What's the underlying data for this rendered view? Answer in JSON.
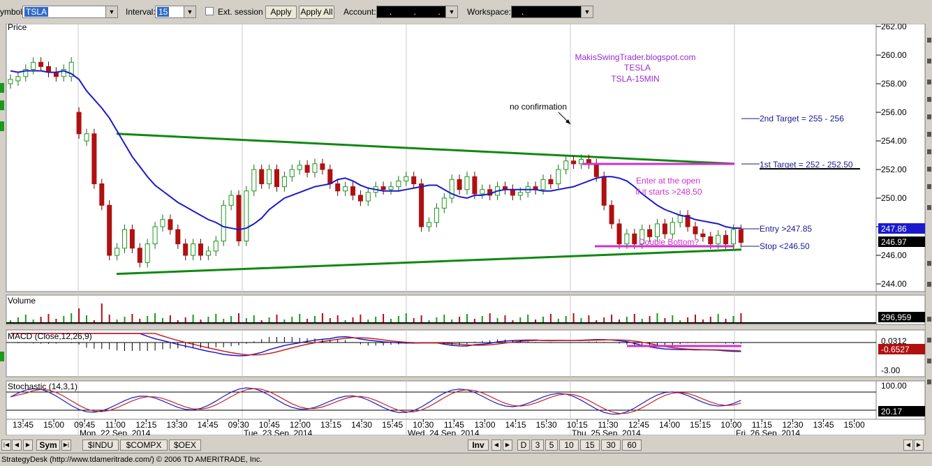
{
  "toolbar": {
    "symbol_label": "ymbol:",
    "symbol_value": "TSLA",
    "interval_label": "Interval:",
    "interval_value": "15",
    "ext_session_label": "Ext. session",
    "apply_label": "Apply",
    "apply_all_label": "Apply All",
    "account_label": "Account:",
    "account_value": ". . . .",
    "workspace_label": "Workspace:",
    "workspace_value": "."
  },
  "panels": {
    "price": "Price",
    "volume": "Volume",
    "macd": "MACD (Close,12,26,9)",
    "stochastic": "Stochastic (14,3,1)"
  },
  "price_axis": [
    "262.00",
    "260.00",
    "258.00",
    "256.00",
    "254.00",
    "252.00",
    "250.00",
    "248.00",
    "246.00",
    "244.00"
  ],
  "price_badges": {
    "blue": "247.86",
    "black": "246.97"
  },
  "volume_badge": "296,959",
  "macd_axis": {
    "top": "0.0312",
    "badge": "-0.6527",
    "bottom": "-3.00"
  },
  "stoch_axis": {
    "top": "100.00",
    "badge": "20.17"
  },
  "time_labels": [
    "13:45",
    "15:00",
    "09:45",
    "11:00",
    "12:15",
    "13:30",
    "14:45",
    "09:30",
    "10:45",
    "12:00",
    "13:15",
    "14:30",
    "15:45",
    "10:30",
    "11:45",
    "13:00",
    "14:15",
    "15:30",
    "10:15",
    "11:30",
    "12:45",
    "14:00",
    "15:15",
    "10:00",
    "11:15",
    "12:30",
    "13:45",
    "15:00"
  ],
  "date_labels": [
    "Mon, 22 Sep, 2014",
    "Tue, 23 Sep, 2014",
    "Wed, 24 Sep, 2014",
    "Thu, 25 Sep, 2014",
    "Fri, 26 Sep, 2014"
  ],
  "annotations": {
    "blog": "MakisSwingTrader.blogspot.com",
    "name": "TESLA",
    "ticker": "TSLA-15MIN",
    "no_confirmation": "no confirmation",
    "target2": "2nd Target = 255 - 256",
    "target1": "1st Target = 252 - 252.50",
    "enter1": "Enter at the open",
    "enter2": "if it starts >248.50",
    "entry": "Entry >247.85",
    "stop": "Stop <246.50",
    "double_bottom": "Double Bottom?"
  },
  "tabs": {
    "sym": "Sym",
    "sheets": [
      "$INDU",
      "$COMPX",
      "$OEX"
    ],
    "inv": "Inv",
    "periods": [
      "D",
      "3",
      "5",
      "10",
      "15",
      "30",
      "60"
    ]
  },
  "status_text": "StrategyDesk (http://www.tdameritrade.com/) © 2006 TD AMERITRADE, Inc.",
  "colors": {
    "up": "#1a9a1a",
    "down": "#b01010",
    "ma": "#1a1acc",
    "channel": "#118811",
    "annotation": "#cc33cc",
    "label": "#1a1a8c"
  },
  "chart_data": {
    "type": "candlestick",
    "symbol": "TSLA",
    "interval": "15",
    "ylim": [
      243.5,
      262.5
    ],
    "channel_upper": [
      [
        0.135,
        254.5
      ],
      [
        0.95,
        252.4
      ]
    ],
    "channel_lower": [
      [
        0.135,
        244.7
      ],
      [
        0.95,
        246.4
      ]
    ],
    "ma_series": [
      258.9,
      258.8,
      258.9,
      258.9,
      258.9,
      258.8,
      258.8,
      258.9,
      258.7,
      258.3,
      257.5,
      256.9,
      256.3,
      255.6,
      254.7,
      253.8,
      252.9,
      252.2,
      251.5,
      250.9,
      250.5,
      250.1,
      249.7,
      249.4,
      249.1,
      248.8,
      248.5,
      248.3,
      248.0,
      247.9,
      247.8,
      247.9,
      248.2,
      248.6,
      249.2,
      249.6,
      250.0,
      250.2,
      250.4,
      250.6,
      250.8,
      250.9,
      251.0,
      251.3,
      251.4,
      251.2,
      250.9,
      250.7,
      250.6,
      250.5,
      250.5,
      250.5,
      250.6,
      250.7,
      250.8,
      250.9,
      250.9,
      250.6,
      250.3,
      250.1,
      250.0,
      250.2,
      250.2,
      250.3,
      250.5,
      250.6,
      250.6,
      250.6,
      250.6,
      250.6,
      250.5,
      250.5,
      250.6,
      250.7,
      250.8,
      251.0,
      251.2,
      251.4,
      251.5,
      251.5,
      251.4,
      251.2,
      250.8,
      250.3,
      249.9,
      249.5,
      249.2,
      249.0,
      248.8,
      248.7,
      248.5,
      248.4,
      248.3,
      248.2,
      248.0,
      247.9,
      247.9
    ],
    "candles": [
      [
        258.0,
        258.3
      ],
      [
        258.2,
        258.5
      ],
      [
        258.5,
        259.0
      ],
      [
        259.0,
        259.5
      ],
      [
        259.5,
        259.2
      ],
      [
        259.2,
        258.8
      ],
      [
        258.8,
        258.5
      ],
      [
        258.5,
        259.0
      ],
      [
        258.5,
        259.5
      ],
      [
        256.0,
        254.5
      ],
      [
        254.0,
        254.5
      ],
      [
        254.5,
        251.0
      ],
      [
        251.0,
        249.5
      ],
      [
        249.5,
        246.0
      ],
      [
        246.0,
        246.5
      ],
      [
        246.5,
        247.8
      ],
      [
        247.8,
        246.5
      ],
      [
        246.5,
        245.5
      ],
      [
        245.5,
        246.8
      ],
      [
        246.8,
        248.0
      ],
      [
        248.0,
        248.5
      ],
      [
        248.5,
        247.8
      ],
      [
        247.8,
        246.8
      ],
      [
        246.8,
        246.0
      ],
      [
        246.0,
        246.8
      ],
      [
        246.8,
        246.0
      ],
      [
        246.0,
        246.3
      ],
      [
        246.3,
        247.0
      ],
      [
        247.0,
        249.5
      ],
      [
        249.5,
        250.2
      ],
      [
        250.2,
        247.0
      ],
      [
        247.0,
        250.5
      ],
      [
        250.5,
        252.0
      ],
      [
        252.0,
        251.0
      ],
      [
        251.0,
        252.0
      ],
      [
        252.0,
        250.8
      ],
      [
        250.8,
        251.5
      ],
      [
        251.5,
        252.0
      ],
      [
        252.0,
        252.3
      ],
      [
        252.3,
        251.8
      ],
      [
        251.8,
        252.4
      ],
      [
        252.4,
        252.0
      ],
      [
        252.0,
        251.0
      ],
      [
        251.0,
        250.5
      ],
      [
        250.5,
        250.8
      ],
      [
        250.8,
        250.2
      ],
      [
        250.2,
        249.8
      ],
      [
        249.8,
        250.4
      ],
      [
        250.4,
        250.8
      ],
      [
        250.8,
        250.6
      ],
      [
        250.6,
        250.8
      ],
      [
        250.8,
        251.2
      ],
      [
        251.2,
        251.5
      ],
      [
        251.5,
        251.0
      ],
      [
        251.0,
        248.0
      ],
      [
        248.0,
        248.3
      ],
      [
        248.3,
        249.3
      ],
      [
        249.3,
        250.0
      ],
      [
        250.0,
        251.3
      ],
      [
        251.3,
        250.6
      ],
      [
        250.6,
        251.5
      ],
      [
        251.5,
        250.3
      ],
      [
        250.3,
        250.6
      ],
      [
        250.6,
        250.2
      ],
      [
        250.2,
        250.8
      ],
      [
        250.8,
        250.6
      ],
      [
        250.6,
        250.2
      ],
      [
        250.2,
        250.4
      ],
      [
        250.4,
        250.8
      ],
      [
        250.8,
        250.6
      ],
      [
        250.6,
        251.3
      ],
      [
        251.3,
        251.0
      ],
      [
        251.0,
        252.0
      ],
      [
        252.0,
        252.6
      ],
      [
        252.6,
        252.4
      ],
      [
        252.4,
        252.7
      ],
      [
        252.7,
        252.4
      ],
      [
        252.4,
        251.5
      ],
      [
        251.5,
        249.5
      ],
      [
        249.5,
        248.2
      ],
      [
        248.2,
        246.8
      ],
      [
        246.8,
        247.5
      ],
      [
        247.5,
        246.8
      ],
      [
        246.8,
        247.8
      ],
      [
        247.8,
        247.3
      ],
      [
        247.3,
        248.2
      ],
      [
        248.2,
        247.5
      ],
      [
        247.5,
        248.3
      ],
      [
        248.3,
        248.8
      ],
      [
        248.8,
        248.0
      ],
      [
        248.0,
        247.5
      ],
      [
        247.5,
        247.3
      ],
      [
        247.3,
        246.8
      ],
      [
        246.8,
        247.4
      ],
      [
        247.4,
        246.8
      ],
      [
        246.8,
        247.8
      ],
      [
        247.8,
        246.9
      ]
    ],
    "stop_line": 246.5,
    "target1_line": 252.25,
    "entry_level": 247.85
  }
}
